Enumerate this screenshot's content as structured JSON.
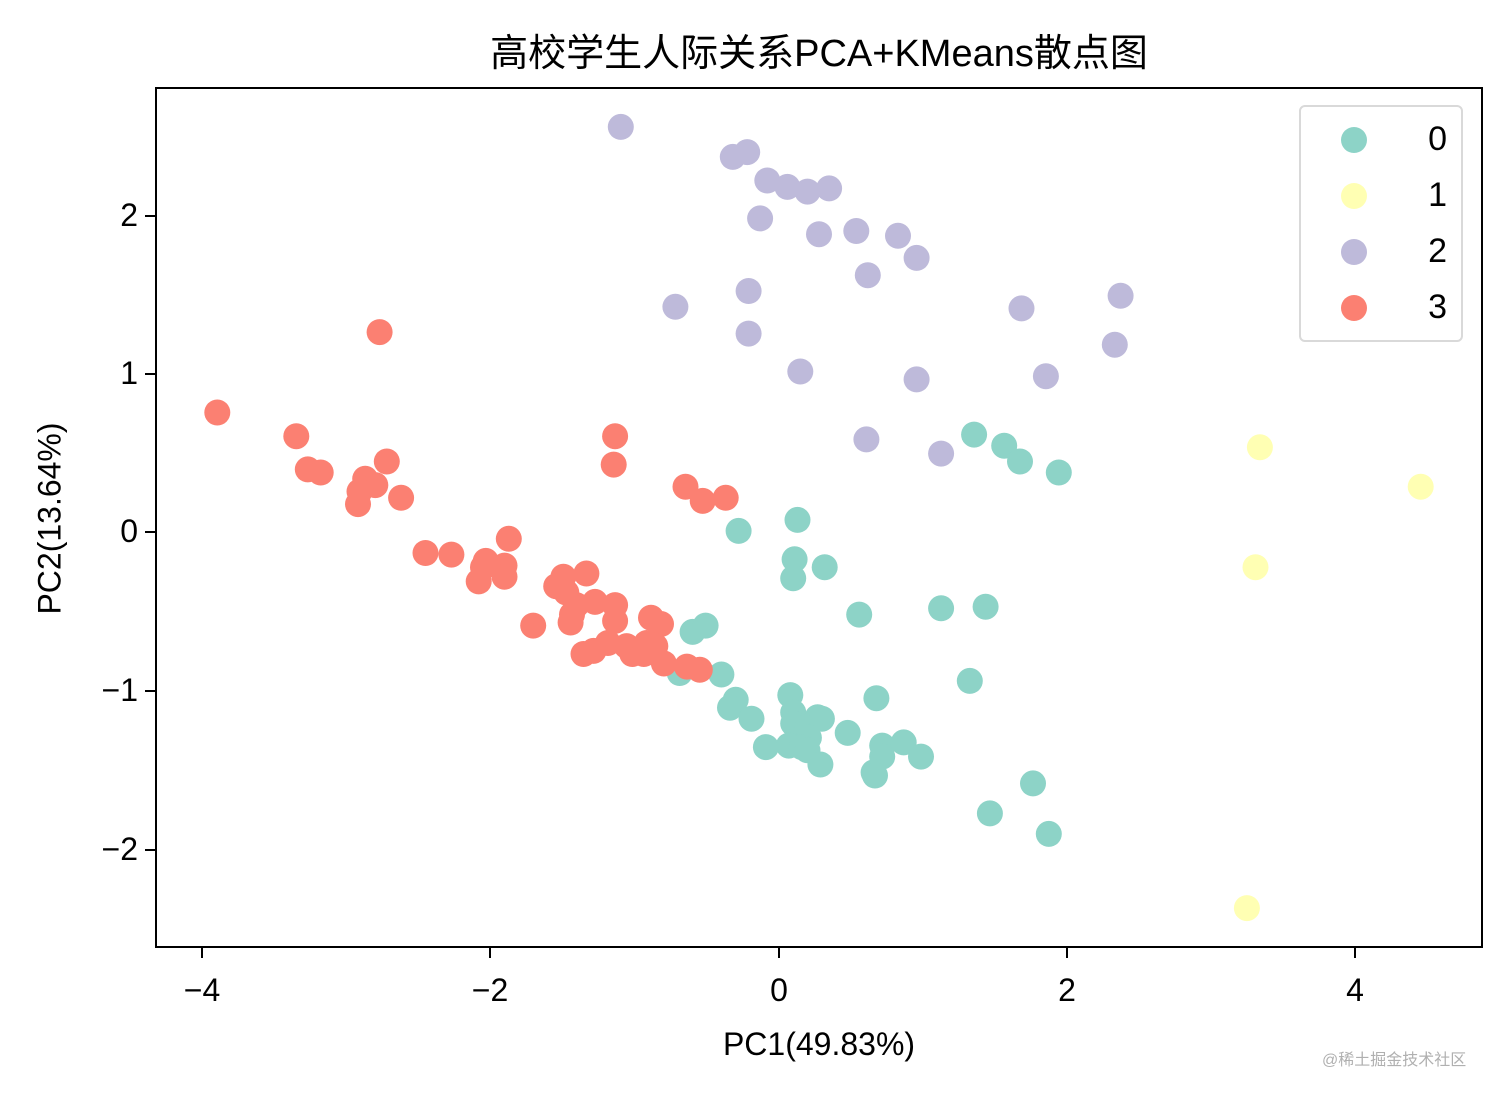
{
  "chart_data": {
    "type": "scatter",
    "title": "高校学生人际关系PCA+KMeans散点图",
    "xlabel": "PC1(49.83%)",
    "ylabel": "PC2(13.64%)",
    "xlim": [
      -4.33,
      4.89
    ],
    "ylim": [
      -2.62,
      2.81
    ],
    "xticks": [
      -4,
      -2,
      0,
      2,
      4
    ],
    "xtick_labels": [
      "−4",
      "−2",
      "0",
      "2",
      "4"
    ],
    "yticks": [
      -2,
      -1,
      0,
      1,
      2
    ],
    "ytick_labels": [
      "−2",
      "−1",
      "0",
      "1",
      "2"
    ],
    "grid": false,
    "legend_position": "upper right",
    "series": [
      {
        "name": "0",
        "color": "#8dd3c7",
        "points": [
          [
            1.36,
            0.62
          ],
          [
            1.57,
            0.55
          ],
          [
            1.68,
            0.45
          ],
          [
            1.95,
            0.38
          ],
          [
            -0.28,
            0.01
          ],
          [
            0.13,
            0.08
          ],
          [
            0.11,
            -0.17
          ],
          [
            0.32,
            -0.22
          ],
          [
            0.1,
            -0.29
          ],
          [
            0.56,
            -0.52
          ],
          [
            1.13,
            -0.48
          ],
          [
            1.44,
            -0.47
          ],
          [
            1.33,
            -0.94
          ],
          [
            -0.6,
            -0.63
          ],
          [
            -0.51,
            -0.59
          ],
          [
            -0.69,
            -0.89
          ],
          [
            -0.4,
            -0.9
          ],
          [
            -0.3,
            -1.06
          ],
          [
            -0.34,
            -1.11
          ],
          [
            -0.19,
            -1.18
          ],
          [
            0.08,
            -1.03
          ],
          [
            0.1,
            -1.14
          ],
          [
            0.1,
            -1.21
          ],
          [
            0.2,
            -1.23
          ],
          [
            0.27,
            -1.17
          ],
          [
            0.3,
            -1.18
          ],
          [
            0.21,
            -1.3
          ],
          [
            -0.09,
            -1.36
          ],
          [
            0.07,
            -1.35
          ],
          [
            0.16,
            -1.36
          ],
          [
            0.2,
            -1.38
          ],
          [
            0.29,
            -1.47
          ],
          [
            0.48,
            -1.27
          ],
          [
            0.68,
            -1.05
          ],
          [
            0.72,
            -1.35
          ],
          [
            0.72,
            -1.42
          ],
          [
            0.66,
            -1.52
          ],
          [
            0.67,
            -1.54
          ],
          [
            0.87,
            -1.33
          ],
          [
            0.99,
            -1.42
          ],
          [
            1.47,
            -1.78
          ],
          [
            1.77,
            -1.59
          ],
          [
            1.88,
            -1.91
          ]
        ]
      },
      {
        "name": "1",
        "color": "#ffffb3",
        "points": [
          [
            3.35,
            0.54
          ],
          [
            4.47,
            0.29
          ],
          [
            3.32,
            -0.22
          ],
          [
            3.26,
            -2.38
          ]
        ]
      },
      {
        "name": "2",
        "color": "#bebada",
        "points": [
          [
            -1.1,
            2.57
          ],
          [
            -0.32,
            2.38
          ],
          [
            -0.22,
            2.41
          ],
          [
            -0.08,
            2.23
          ],
          [
            0.06,
            2.19
          ],
          [
            0.2,
            2.16
          ],
          [
            0.35,
            2.18
          ],
          [
            -0.13,
            1.99
          ],
          [
            0.28,
            1.89
          ],
          [
            0.54,
            1.91
          ],
          [
            0.83,
            1.88
          ],
          [
            0.96,
            1.74
          ],
          [
            0.62,
            1.63
          ],
          [
            -0.72,
            1.43
          ],
          [
            -0.21,
            1.53
          ],
          [
            -0.21,
            1.26
          ],
          [
            0.15,
            1.02
          ],
          [
            1.69,
            1.42
          ],
          [
            2.38,
            1.5
          ],
          [
            2.34,
            1.19
          ],
          [
            1.86,
            0.99
          ],
          [
            0.96,
            0.97
          ],
          [
            0.61,
            0.59
          ],
          [
            1.13,
            0.5
          ]
        ]
      },
      {
        "name": "3",
        "color": "#fb8072",
        "points": [
          [
            -2.78,
            1.27
          ],
          [
            -3.91,
            0.76
          ],
          [
            -3.36,
            0.61
          ],
          [
            -3.28,
            0.4
          ],
          [
            -3.19,
            0.38
          ],
          [
            -2.73,
            0.45
          ],
          [
            -2.88,
            0.34
          ],
          [
            -2.81,
            0.3
          ],
          [
            -2.92,
            0.26
          ],
          [
            -2.93,
            0.18
          ],
          [
            -2.63,
            0.22
          ],
          [
            -1.14,
            0.61
          ],
          [
            -1.15,
            0.43
          ],
          [
            -0.65,
            0.29
          ],
          [
            -0.53,
            0.2
          ],
          [
            -0.37,
            0.22
          ],
          [
            -2.46,
            -0.13
          ],
          [
            -2.28,
            -0.14
          ],
          [
            -1.88,
            -0.04
          ],
          [
            -2.04,
            -0.18
          ],
          [
            -1.91,
            -0.21
          ],
          [
            -2.06,
            -0.22
          ],
          [
            -2.09,
            -0.31
          ],
          [
            -1.91,
            -0.28
          ],
          [
            -1.5,
            -0.28
          ],
          [
            -1.55,
            -0.34
          ],
          [
            -1.34,
            -0.26
          ],
          [
            -1.48,
            -0.38
          ],
          [
            -1.41,
            -0.46
          ],
          [
            -1.28,
            -0.44
          ],
          [
            -1.14,
            -0.46
          ],
          [
            -1.44,
            -0.52
          ],
          [
            -1.45,
            -0.57
          ],
          [
            -1.14,
            -0.56
          ],
          [
            -1.71,
            -0.59
          ],
          [
            -0.89,
            -0.54
          ],
          [
            -0.82,
            -0.58
          ],
          [
            -1.36,
            -0.77
          ],
          [
            -1.29,
            -0.75
          ],
          [
            -1.19,
            -0.7
          ],
          [
            -1.06,
            -0.72
          ],
          [
            -1.02,
            -0.77
          ],
          [
            -0.92,
            -0.7
          ],
          [
            -0.86,
            -0.72
          ],
          [
            -0.94,
            -0.77
          ],
          [
            -0.8,
            -0.83
          ],
          [
            -0.64,
            -0.85
          ],
          [
            -0.55,
            -0.87
          ]
        ]
      }
    ]
  },
  "title": "高校学生人际关系PCA+KMeans散点图",
  "axes": {
    "x_label": "PC1(49.83%)",
    "y_label": "PC2(13.64%)",
    "x_ticks": [
      "−4",
      "−2",
      "0",
      "2",
      "4"
    ],
    "y_ticks": [
      "2",
      "1",
      "0",
      "−1",
      "−2"
    ]
  },
  "legend": {
    "items": [
      {
        "label": "0",
        "color": "#8dd3c7"
      },
      {
        "label": "1",
        "color": "#ffffb3"
      },
      {
        "label": "2",
        "color": "#bebada"
      },
      {
        "label": "3",
        "color": "#fb8072"
      }
    ]
  },
  "watermark": "@稀土掘金技术社区"
}
